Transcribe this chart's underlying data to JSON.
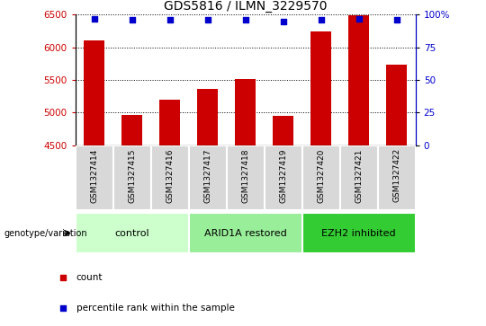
{
  "title": "GDS5816 / ILMN_3229570",
  "categories": [
    "GSM1327414",
    "GSM1327415",
    "GSM1327416",
    "GSM1327417",
    "GSM1327418",
    "GSM1327419",
    "GSM1327420",
    "GSM1327421",
    "GSM1327422"
  ],
  "counts": [
    6110,
    4960,
    5190,
    5360,
    5510,
    4945,
    6240,
    6490,
    5740
  ],
  "percentile_ranks": [
    97,
    96,
    96,
    96,
    96,
    95,
    96,
    97,
    96
  ],
  "ylim_left": [
    4500,
    6500
  ],
  "ylim_right": [
    0,
    100
  ],
  "yticks_left": [
    4500,
    5000,
    5500,
    6000,
    6500
  ],
  "yticks_right": [
    0,
    25,
    50,
    75,
    100
  ],
  "bar_color": "#cc0000",
  "scatter_color": "#0000cc",
  "bar_width": 0.55,
  "group_colors": [
    "#ccffcc",
    "#99ee99",
    "#33cc33"
  ],
  "group_labels": [
    "control",
    "ARID1A restored",
    "EZH2 inhibited"
  ],
  "group_ranges": [
    [
      0,
      2
    ],
    [
      3,
      5
    ],
    [
      6,
      8
    ]
  ],
  "tick_color_left": "#cc0000",
  "tick_color_right": "#0000cc",
  "grid_style": "dotted",
  "grid_color": "black",
  "legend_labels": [
    "count",
    "percentile rank within the sample"
  ],
  "legend_colors": [
    "#cc0000",
    "#0000cc"
  ],
  "genotype_label": "genotype/variation",
  "cell_bg": "#d8d8d8",
  "title_fontsize": 10
}
